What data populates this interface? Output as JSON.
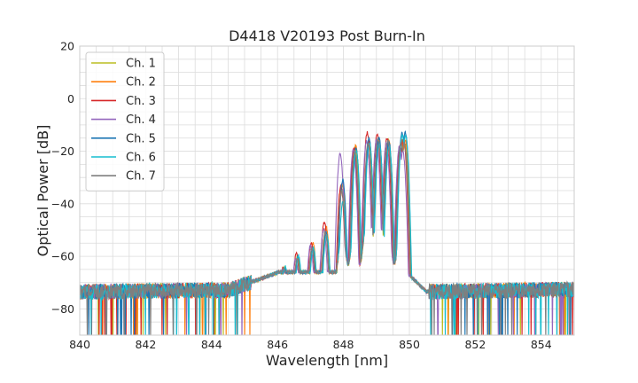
{
  "chart_data": {
    "type": "line",
    "title": "D4418 V20193 Post Burn-In",
    "xlabel": "Wavelength [nm]",
    "ylabel": "Optical Power [dB]",
    "xlim": [
      840,
      855
    ],
    "ylim": [
      -90,
      20
    ],
    "xticks": [
      "840",
      "842",
      "844",
      "846",
      "848",
      "850",
      "852",
      "854"
    ],
    "yticks": [
      "20",
      "0",
      "−20",
      "−40",
      "−60",
      "−80"
    ],
    "grid": true,
    "legend_position": "top-left",
    "style": {
      "background": "#ffffff",
      "grid_color": "#cccccc"
    },
    "series": [
      {
        "name": "Ch. 1",
        "color": "#bcbd22",
        "offset": -0.3,
        "peak_shift": 0.0,
        "peaks": [
          -64.5,
          -60,
          -56,
          -50,
          -33,
          -18.5,
          -17,
          -16.5,
          -16,
          -16,
          -17
        ]
      },
      {
        "name": "Ch. 2",
        "color": "#ff7f0e",
        "offset": -0.2,
        "peak_shift": 0.02,
        "peaks": [
          -64.5,
          -60,
          -55,
          -49,
          -32,
          -18,
          -16,
          -15.5,
          -15.5,
          -15.5,
          -16
        ]
      },
      {
        "name": "Ch. 3",
        "color": "#d62728",
        "offset": -0.1,
        "peak_shift": -0.03,
        "peaks": [
          -64,
          -59,
          -55,
          -47,
          -33,
          -19,
          -13,
          -13.5,
          -15,
          -18,
          -15
        ]
      },
      {
        "name": "Ch. 4",
        "color": "#9467bd",
        "offset": 0.0,
        "peak_shift": -0.05,
        "peaks": [
          -65,
          -61,
          -56,
          -50,
          -21,
          -19.5,
          -16,
          -16,
          -17,
          -18,
          -20
        ]
      },
      {
        "name": "Ch. 5",
        "color": "#1f77b4",
        "offset": 0.1,
        "peak_shift": 0.03,
        "peaks": [
          -64.5,
          -60,
          -57,
          -51,
          -31,
          -19,
          -15,
          -15,
          -16.5,
          -13,
          -13
        ]
      },
      {
        "name": "Ch. 6",
        "color": "#17becf",
        "offset": 0.2,
        "peak_shift": 0.04,
        "peaks": [
          -64,
          -60,
          -57,
          -52,
          -39,
          -20,
          -17,
          -17,
          -18,
          -14,
          -14
        ]
      },
      {
        "name": "Ch. 7",
        "color": "#7f7f7f",
        "offset": 0.3,
        "peak_shift": 0.0,
        "peaks": [
          -64.5,
          -61,
          -57,
          -51,
          -35,
          -20,
          -17,
          -15,
          -16,
          -17,
          -17
        ]
      }
    ],
    "peak_wavelengths": [
      846.2,
      846.6,
      847.05,
      847.45,
      847.95,
      848.35,
      848.75,
      849.05,
      849.35,
      849.75,
      849.85
    ]
  }
}
